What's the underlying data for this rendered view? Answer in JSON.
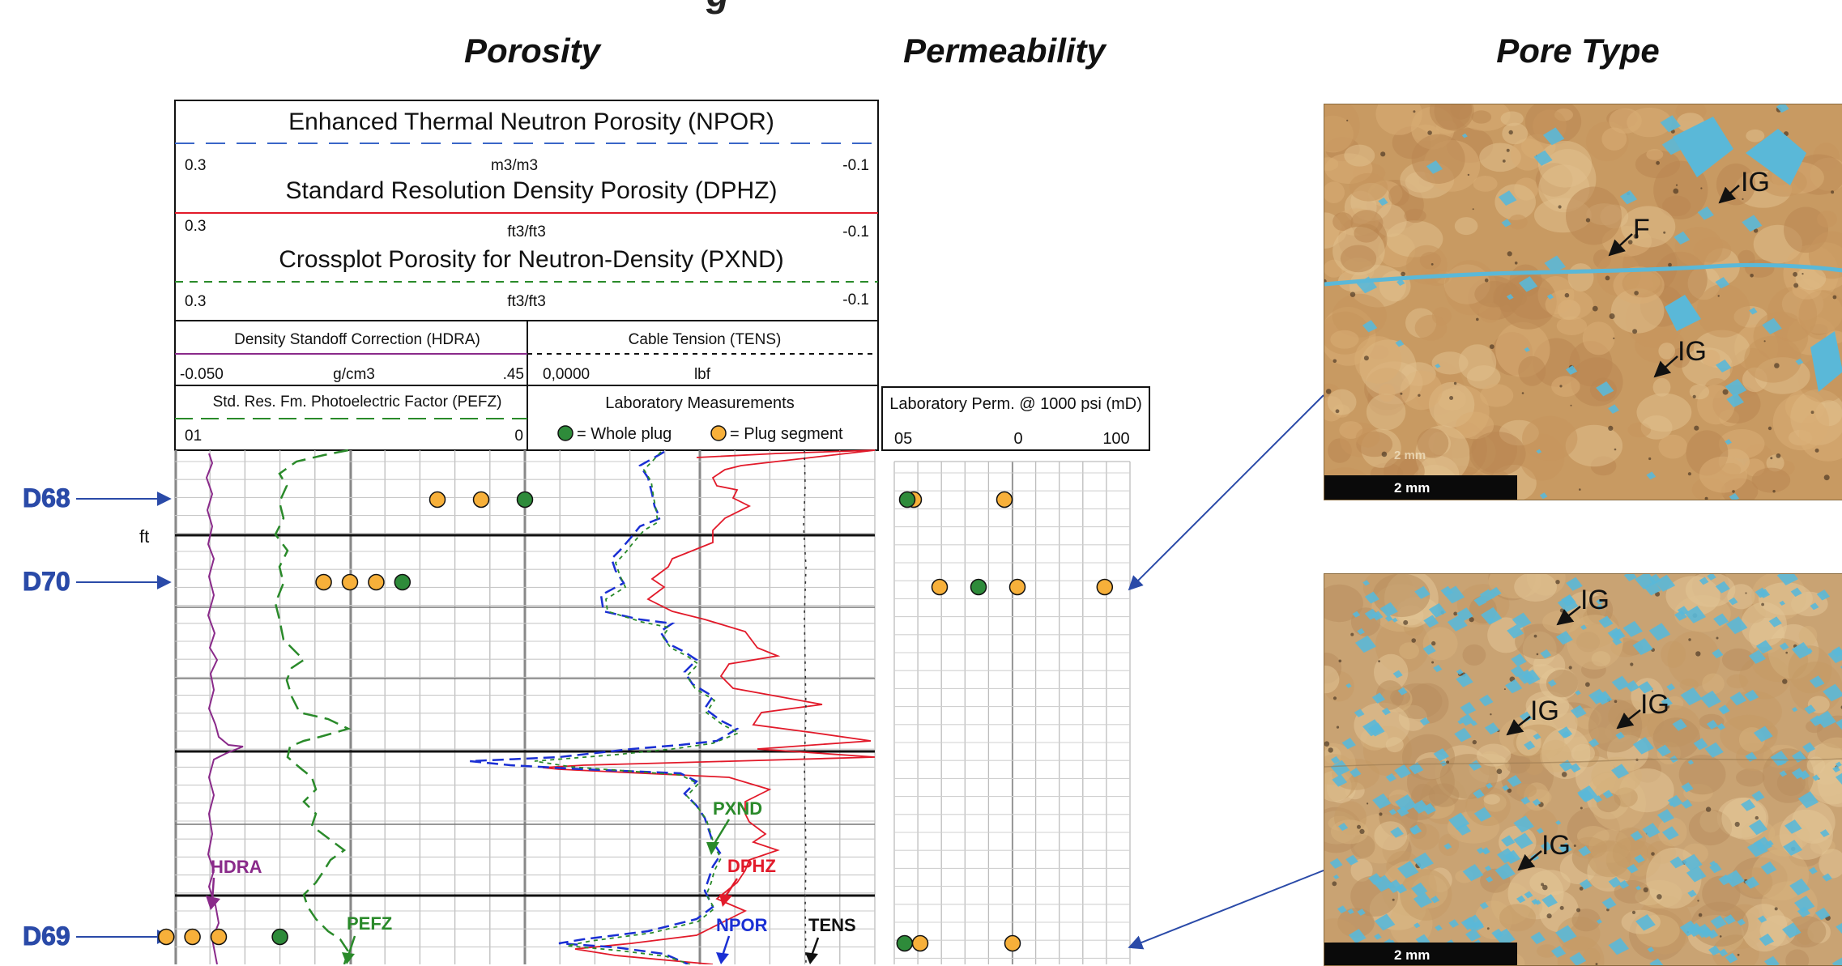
{
  "page_title_partial": "g",
  "headings": {
    "porosity": "Porosity",
    "permeability": "Permeability",
    "pore_type": "Pore Type"
  },
  "header": {
    "npor": {
      "title": "Enhanced Thermal Neutron Porosity (NPOR)",
      "left": "0.3",
      "unit": "m3/m3",
      "right": "-0.1"
    },
    "dphz": {
      "title": "Standard Resolution Density Porosity (DPHZ)",
      "left": "0.3",
      "unit": "ft3/ft3",
      "right": "-0.1"
    },
    "pxnd": {
      "title": "Crossplot Porosity for Neutron-Density (PXND)",
      "left": "0.3",
      "unit": "ft3/ft3",
      "right": "-0.1"
    },
    "hdra": {
      "title": "Density Standoff Correction (HDRA)",
      "left": "-0.050",
      "unit": "g/cm3",
      "right": ".45"
    },
    "tens": {
      "title": "Cable Tension (TENS)",
      "left": "0,0000",
      "unit": "lbf"
    },
    "pefz": {
      "title": "Std. Res. Fm. Photoelectric Factor (PEFZ)",
      "left": "01",
      "right": "0"
    },
    "lab": {
      "title": "Laboratory Measurements",
      "whole_plug": "= Whole plug",
      "plug_segment": "= Plug segment"
    },
    "perm": {
      "title": "Laboratory Perm. @ 1000 psi (mD)",
      "ticks": [
        "05",
        "0",
        "100"
      ]
    }
  },
  "depth_unit": "ft",
  "samples": [
    "D68",
    "D70",
    "D69"
  ],
  "curve_labels": {
    "pxnd": "PXND",
    "dphz": "DPHZ",
    "npor": "NPOR",
    "tens": "TENS",
    "hdra": "HDRA",
    "pefz": "PEFZ"
  },
  "micrographs": {
    "top": {
      "labels": [
        "IG",
        "F",
        "IG"
      ],
      "scale": "2 mm",
      "watermark": "2 mm"
    },
    "bottom": {
      "labels": [
        "IG",
        "IG",
        "IG",
        "IG"
      ],
      "scale": "2 mm"
    }
  },
  "colors": {
    "npor": "#1a2fd4",
    "dphz": "#e21a2a",
    "pxnd": "#2a8a2a",
    "hdra": "#8a2a8a",
    "pefz": "#2a8a2a",
    "whole_plug": "#2e8b3a",
    "plug_segment": "#f7b03a",
    "sample_arrow": "#2a4aa8",
    "pore_blue": "#5ab8d8"
  },
  "chart_data": {
    "type": "line",
    "xaxis": {
      "label": "Porosity (NPOR, DPHZ, PXND)",
      "range": [
        0.3,
        -0.1
      ]
    },
    "lab_points": [
      {
        "sample": "D68",
        "whole_plug": [
          0.1
        ],
        "plug_segment": [
          0.15,
          0.125
        ]
      },
      {
        "sample": "D70",
        "whole_plug": [
          0.17
        ],
        "plug_segment": [
          0.215,
          0.2,
          0.185
        ]
      },
      {
        "sample": "D69",
        "whole_plug": [
          0.24
        ],
        "plug_segment": [
          0.305,
          0.29,
          0.275
        ]
      }
    ],
    "perm_points": [
      {
        "sample": "D68",
        "whole_plug": [
          0.5
        ],
        "plug_segment": [
          1.0,
          8.0
        ]
      },
      {
        "sample": "D70",
        "whole_plug": [
          6.0
        ],
        "plug_segment": [
          3.0,
          9.0,
          90.0
        ]
      },
      {
        "sample": "D69",
        "whole_plug": [
          0.3
        ],
        "plug_segment": [
          0.0,
          1.5
        ]
      }
    ]
  }
}
